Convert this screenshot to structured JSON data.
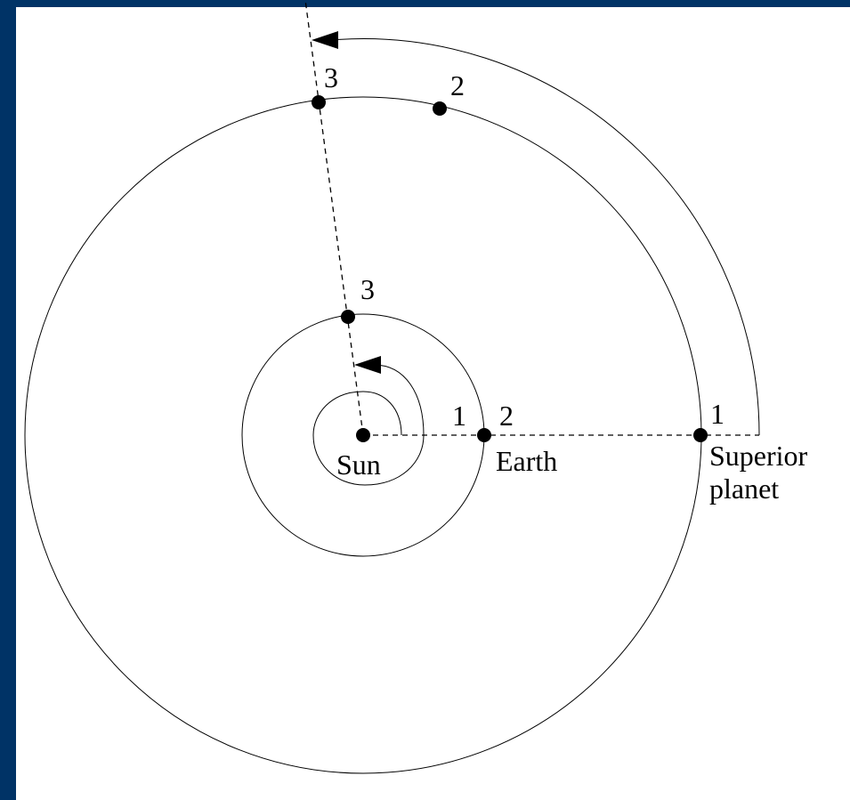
{
  "bodies": {
    "sun": "Sun",
    "earth": "Earth",
    "superior": "Superior",
    "planet": "planet"
  },
  "positions": {
    "earth_1": "1",
    "earth_2": "2",
    "earth_3": "3",
    "superior_1": "1",
    "superior_2": "2",
    "superior_3": "3"
  }
}
